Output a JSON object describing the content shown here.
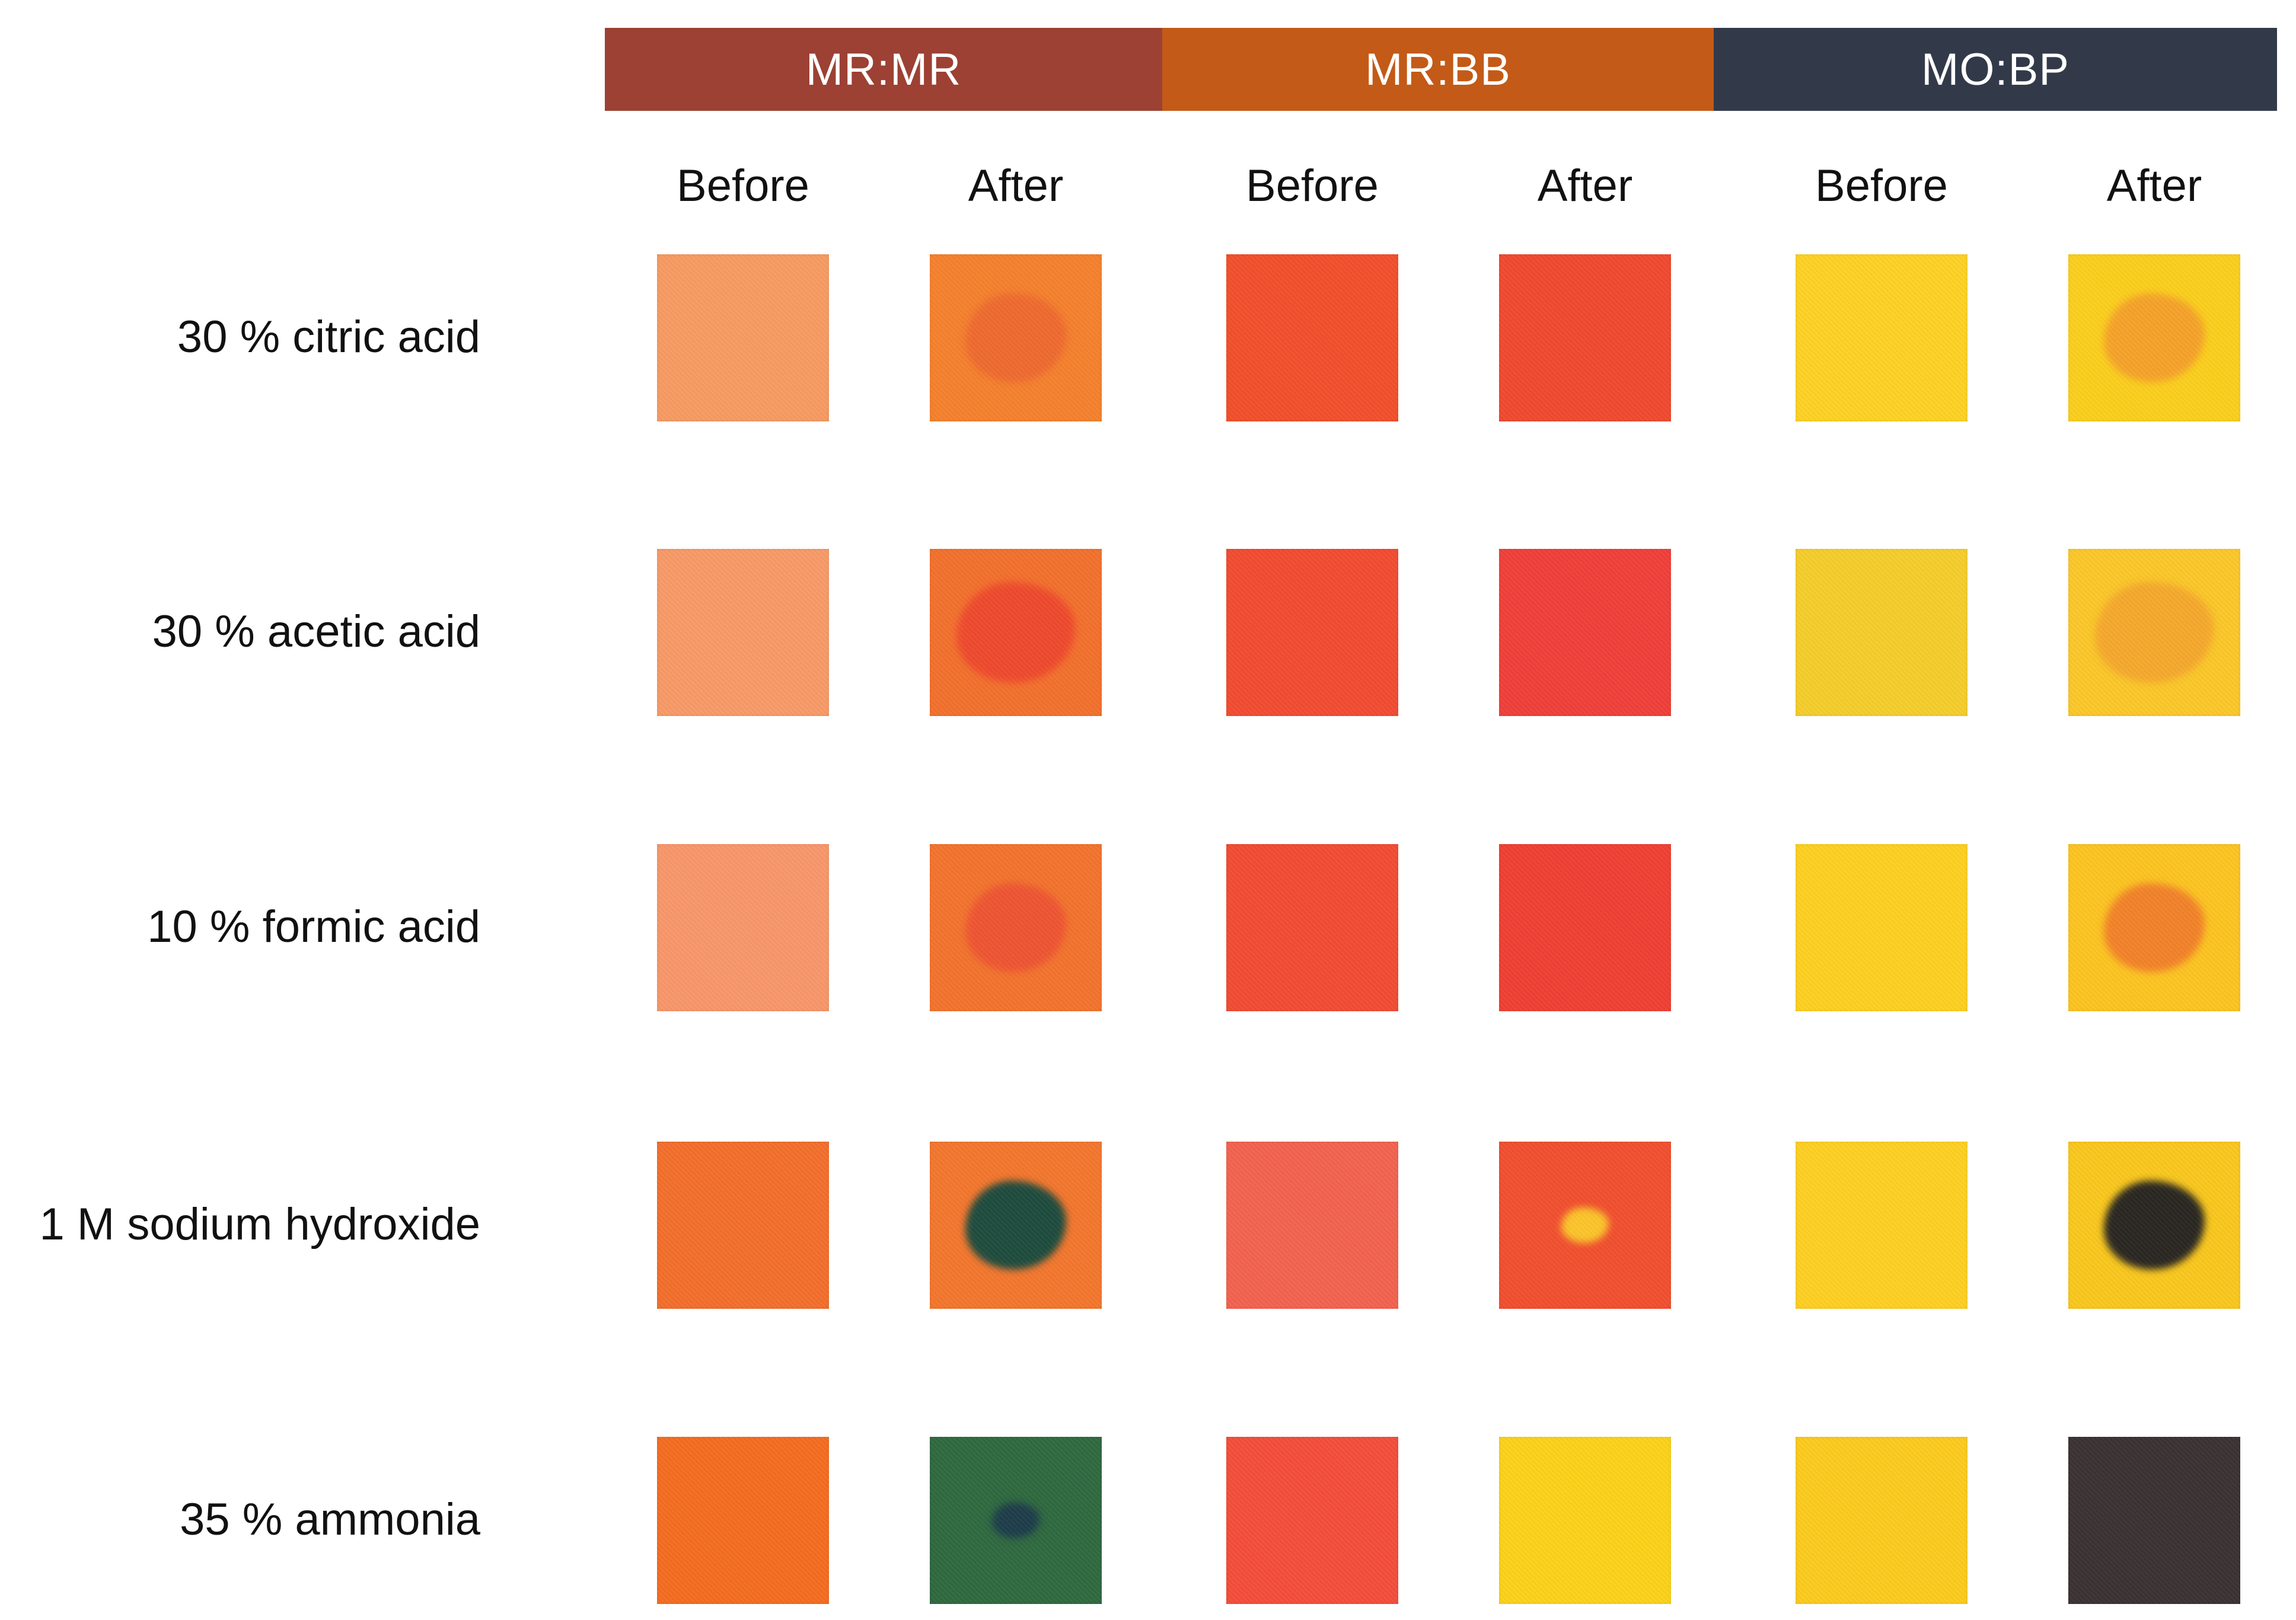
{
  "groups": [
    {
      "label": "MR:MR",
      "color": "#9c4133"
    },
    {
      "label": "MR:BB",
      "color": "#c35a17"
    },
    {
      "label": "MO:BP",
      "color": "#323a4a"
    }
  ],
  "columns": [
    "Before",
    "After",
    "Before",
    "After",
    "Before",
    "After"
  ],
  "rows": [
    {
      "label": "30 % citric acid",
      "swatches": [
        {
          "base": "#f79b62",
          "spot": null
        },
        {
          "base": "#f5812e",
          "spot": "#ee6a30",
          "spot_size": "medium"
        },
        {
          "base": "#f2502c",
          "spot": null
        },
        {
          "base": "#f04a30",
          "spot": null
        },
        {
          "base": "#fdd225",
          "spot": null
        },
        {
          "base": "#fbcf1e",
          "spot": "#f5a22a",
          "spot_size": "medium"
        }
      ]
    },
    {
      "label": "30 % acetic acid",
      "swatches": [
        {
          "base": "#f89a68",
          "spot": null
        },
        {
          "base": "#f3712d",
          "spot": "#ee4a2e",
          "spot_size": "large"
        },
        {
          "base": "#f24c32",
          "spot": null
        },
        {
          "base": "#f0403a",
          "spot": null
        },
        {
          "base": "#f5cd2c",
          "spot": null
        },
        {
          "base": "#fbc72a",
          "spot": "#f5a82d",
          "spot_size": "large"
        }
      ]
    },
    {
      "label": "10 % formic acid",
      "swatches": [
        {
          "base": "#f8976a",
          "spot": null
        },
        {
          "base": "#f3742e",
          "spot": "#ee5533",
          "spot_size": "medium"
        },
        {
          "base": "#f24c34",
          "spot": null
        },
        {
          "base": "#f04034",
          "spot": null
        },
        {
          "base": "#fdd021",
          "spot": null
        },
        {
          "base": "#fcc422",
          "spot": "#f2822a",
          "spot_size": "medium"
        }
      ]
    },
    {
      "label": "1 M sodium hydroxide",
      "swatches": [
        {
          "base": "#f36f2c",
          "spot": null
        },
        {
          "base": "#f3772e",
          "spot": "#1f4c3e",
          "spot_size": "medium"
        },
        {
          "base": "#f36250",
          "spot": null
        },
        {
          "base": "#f1502f",
          "spot": "#fbc42b",
          "spot_size": "small"
        },
        {
          "base": "#fdd023",
          "spot": null
        },
        {
          "base": "#f9c71e",
          "spot": "#2a2722",
          "spot_size": "medium"
        }
      ]
    },
    {
      "label": "35 % ammonia",
      "swatches": [
        {
          "base": "#f46d21",
          "spot": null
        },
        {
          "base": "#2f6940",
          "spot": "#1e3d4a",
          "spot_size": "small"
        },
        {
          "base": "#f44e3b",
          "spot": null
        },
        {
          "base": "#fbd21a",
          "spot": null
        },
        {
          "base": "#fbcb1e",
          "spot": null
        },
        {
          "base": "#3b3333",
          "spot": null
        }
      ]
    }
  ]
}
